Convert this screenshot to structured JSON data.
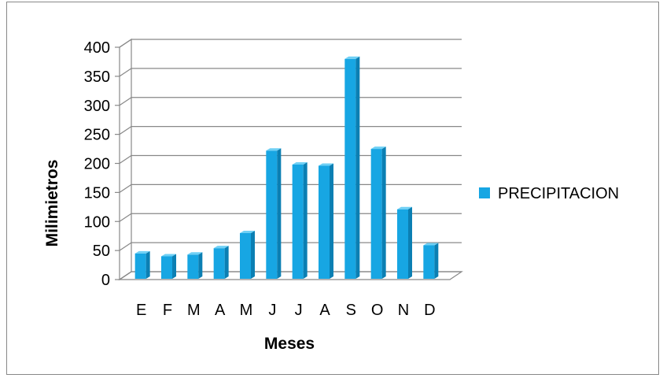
{
  "chart_data": {
    "type": "bar",
    "title": "",
    "xlabel": "Meses",
    "ylabel": "Milimietros",
    "categories": [
      "E",
      "F",
      "M",
      "A",
      "M",
      "J",
      "J",
      "A",
      "S",
      "O",
      "N",
      "D"
    ],
    "series": [
      {
        "name": "PRECIPITACION",
        "values": [
          45,
          40,
          43,
          54,
          80,
          222,
          198,
          196,
          380,
          225,
          121,
          59
        ],
        "color": "#17a6e3"
      }
    ],
    "ylim": [
      0,
      400
    ],
    "yticks": [
      0,
      50,
      100,
      150,
      200,
      250,
      300,
      350,
      400
    ],
    "grid": true,
    "style": "3d-clustered-column",
    "legend_position": "right"
  }
}
